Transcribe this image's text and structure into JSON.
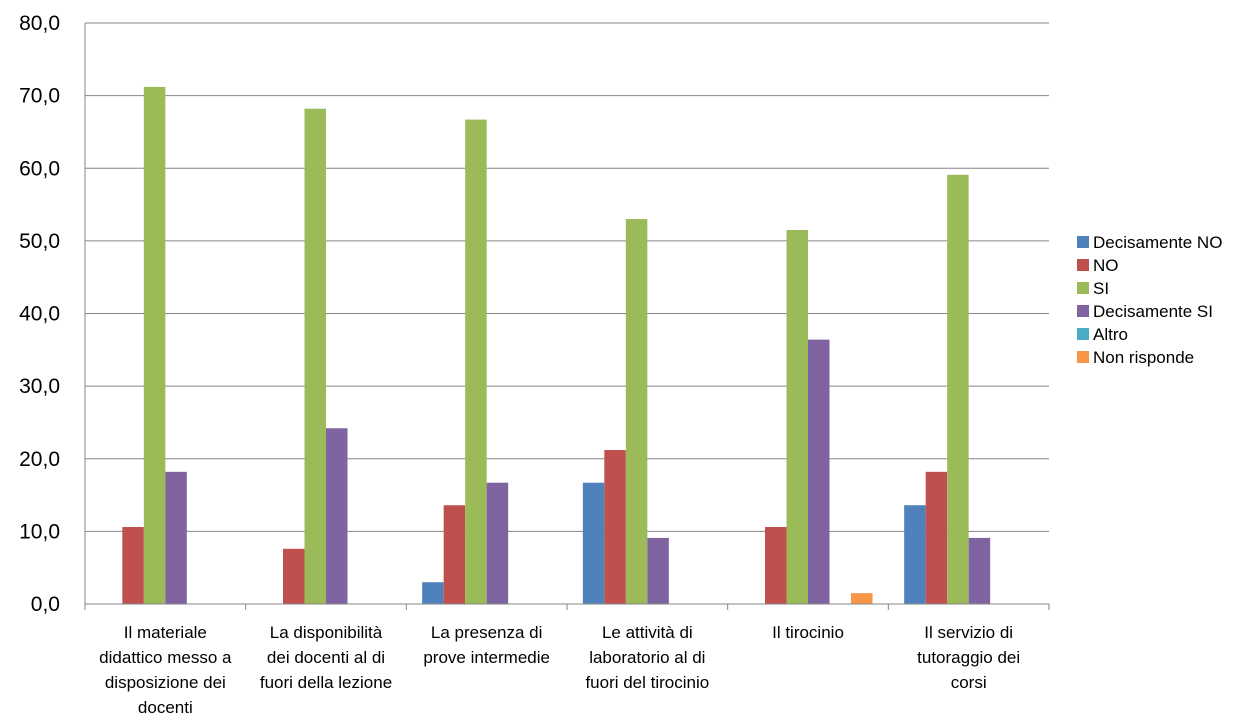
{
  "chart_data": {
    "type": "bar",
    "title": "",
    "xlabel": "",
    "ylabel": "",
    "ylim": [
      0,
      80
    ],
    "yticks": [
      "0,0",
      "10,0",
      "20,0",
      "30,0",
      "40,0",
      "50,0",
      "60,0",
      "70,0",
      "80,0"
    ],
    "grid": true,
    "legend_position": "right",
    "categories": [
      [
        "Il materiale",
        "didattico messo a",
        "disposizione dei",
        "docenti"
      ],
      [
        "La disponibilità",
        "dei docenti al di",
        "fuori della lezione"
      ],
      [
        "La presenza di",
        "prove intermedie"
      ],
      [
        "Le attività di",
        "laboratorio al di",
        "fuori del tirocinio"
      ],
      [
        "Il tirocinio"
      ],
      [
        "Il servizio di",
        "tutoraggio dei",
        "corsi"
      ]
    ],
    "series": [
      {
        "name": "Decisamente NO",
        "color": "#4F81BD",
        "values": [
          0,
          0,
          3.0,
          16.7,
          0,
          13.6
        ]
      },
      {
        "name": "NO",
        "color": "#C0504D",
        "values": [
          10.6,
          7.6,
          13.6,
          21.2,
          10.6,
          18.2
        ]
      },
      {
        "name": "SI",
        "color": "#9BBB59",
        "values": [
          71.2,
          68.2,
          66.7,
          53.0,
          51.5,
          59.1
        ]
      },
      {
        "name": "Decisamente SI",
        "color": "#8064A2",
        "values": [
          18.2,
          24.2,
          16.7,
          9.1,
          36.4,
          9.1
        ]
      },
      {
        "name": "Altro",
        "color": "#4BACC6",
        "values": [
          0,
          0,
          0,
          0,
          0,
          0
        ]
      },
      {
        "name": "Non risponde",
        "color": "#F79646",
        "values": [
          0,
          0,
          0,
          0,
          1.5,
          0
        ]
      }
    ]
  }
}
